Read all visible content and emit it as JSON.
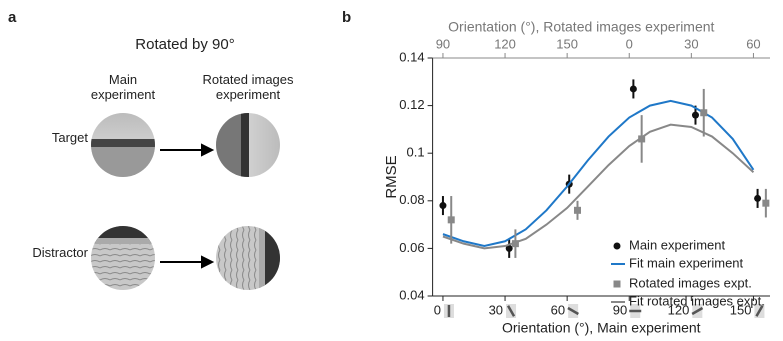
{
  "panel_a": {
    "label": "a",
    "title": "Rotated by 90°",
    "column_headers": [
      "Main experiment",
      "Rotated images experiment"
    ],
    "row_labels": [
      "Target",
      "Distractor"
    ]
  },
  "chart_data": {
    "type": "scatter",
    "label": "b",
    "xlabel": "Orientation (°), Main experiment",
    "x2label": "Orientation (°), Rotated images experiment",
    "ylabel": "RMSE",
    "xlim": [
      -5,
      158
    ],
    "ylim": [
      0.04,
      0.14
    ],
    "xticks": [
      0,
      30,
      60,
      90,
      120,
      150
    ],
    "x2ticks": [
      {
        "value": 0,
        "label": "90"
      },
      {
        "value": 30,
        "label": "120"
      },
      {
        "value": 60,
        "label": "150"
      },
      {
        "value": 90,
        "label": "0"
      },
      {
        "value": 120,
        "label": "30"
      },
      {
        "value": 150,
        "label": "60"
      }
    ],
    "yticks": [
      0.04,
      0.06,
      0.08,
      0.1,
      0.12,
      0.14
    ],
    "legend": "lower right",
    "series": [
      {
        "name": "Main experiment",
        "color": "#111111",
        "marker": "circle",
        "x": [
          0,
          32,
          61,
          92,
          122,
          152
        ],
        "values": [
          0.078,
          0.06,
          0.087,
          0.127,
          0.116,
          0.081
        ],
        "errors": [
          0.004,
          0.004,
          0.004,
          0.004,
          0.004,
          0.004
        ]
      },
      {
        "name": "Fit main experiment",
        "color": "#1f78c8",
        "marker": "line",
        "x": [
          0,
          10,
          20,
          30,
          40,
          50,
          60,
          70,
          80,
          90,
          100,
          110,
          120,
          130,
          140,
          150
        ],
        "values": [
          0.066,
          0.063,
          0.061,
          0.063,
          0.068,
          0.076,
          0.086,
          0.097,
          0.107,
          0.115,
          0.12,
          0.122,
          0.12,
          0.115,
          0.106,
          0.093
        ]
      },
      {
        "name": "Rotated images expt.",
        "color": "#888888",
        "marker": "square",
        "x": [
          4,
          35,
          65,
          96,
          126,
          156
        ],
        "values": [
          0.072,
          0.062,
          0.076,
          0.106,
          0.117,
          0.079
        ],
        "errors": [
          0.01,
          0.006,
          0.004,
          0.01,
          0.01,
          0.006
        ]
      },
      {
        "name": "Fit rotated images expt.",
        "color": "#888888",
        "marker": "line",
        "x": [
          0,
          10,
          20,
          30,
          40,
          50,
          60,
          70,
          80,
          90,
          100,
          110,
          120,
          130,
          140,
          150
        ],
        "values": [
          0.065,
          0.062,
          0.06,
          0.061,
          0.064,
          0.07,
          0.077,
          0.086,
          0.095,
          0.103,
          0.109,
          0.112,
          0.111,
          0.107,
          0.1,
          0.092
        ]
      }
    ]
  }
}
